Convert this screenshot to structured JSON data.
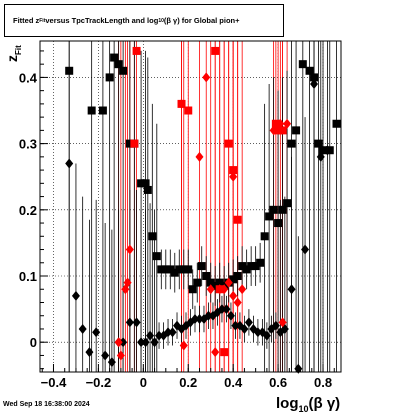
{
  "title": "Fitted z_Fit versus TpcTrackLength and log10(βγ) for Global pion+",
  "title_parts": {
    "pre": "Fitted  z",
    "sub1": "Fit",
    "mid": "  versus TpcTrackLength and log",
    "sub2": "10",
    "post": "(β γ) for Global pion+"
  },
  "footer": "Wed Sep 18 16:38:00 2024",
  "chart_data": {
    "type": "scatter",
    "xlabel": "log10(β γ)",
    "xlabel_parts": {
      "main": "log",
      "sub": "10",
      "tail": "(β γ)"
    },
    "ylabel": "z_Fit",
    "ylabel_parts": {
      "main": "z",
      "sub": "Fit"
    },
    "xlim": [
      -0.46,
      0.88
    ],
    "ylim": [
      -0.045,
      0.455
    ],
    "x_ticks": [
      -0.4,
      -0.2,
      0,
      0.2,
      0.4,
      0.6,
      0.8
    ],
    "x_tick_labels": [
      "−0.4",
      "−0.2",
      "0",
      "0.2",
      "0.4",
      "0.6",
      "0.8"
    ],
    "y_ticks": [
      0,
      0.1,
      0.2,
      0.3,
      0.4
    ],
    "y_tick_labels": [
      "0",
      "0.1",
      "0.2",
      "0.3",
      "0.4"
    ],
    "grid": true,
    "series": [
      {
        "marker": "square",
        "color": "#000000",
        "points": [
          [
            -0.33,
            0.41
          ],
          [
            -0.23,
            0.35
          ],
          [
            -0.18,
            0.35
          ],
          [
            -0.15,
            0.4
          ],
          [
            -0.13,
            0.43
          ],
          [
            -0.11,
            0.42
          ],
          [
            -0.09,
            0.41
          ],
          [
            -0.06,
            0.3
          ],
          [
            -0.04,
            0.3
          ],
          [
            -0.01,
            0.24
          ],
          [
            0.01,
            0.24
          ],
          [
            0.02,
            0.23
          ],
          [
            0.04,
            0.16
          ],
          [
            0.06,
            0.13
          ],
          [
            0.08,
            0.11
          ],
          [
            0.1,
            0.11
          ],
          [
            0.12,
            0.11
          ],
          [
            0.14,
            0.105
          ],
          [
            0.16,
            0.11
          ],
          [
            0.18,
            0.11
          ],
          [
            0.2,
            0.11
          ],
          [
            0.22,
            0.08
          ],
          [
            0.24,
            0.09
          ],
          [
            0.26,
            0.115
          ],
          [
            0.28,
            0.1
          ],
          [
            0.3,
            0.09
          ],
          [
            0.32,
            0.085
          ],
          [
            0.34,
            0.09
          ],
          [
            0.36,
            0.085
          ],
          [
            0.38,
            0.09
          ],
          [
            0.4,
            0.095
          ],
          [
            0.42,
            0.1
          ],
          [
            0.44,
            0.115
          ],
          [
            0.46,
            0.11
          ],
          [
            0.48,
            0.115
          ],
          [
            0.5,
            0.115
          ],
          [
            0.52,
            0.12
          ],
          [
            0.54,
            0.16
          ],
          [
            0.56,
            0.19
          ],
          [
            0.58,
            0.2
          ],
          [
            0.6,
            0.18
          ],
          [
            0.62,
            0.2
          ],
          [
            0.64,
            0.21
          ],
          [
            0.66,
            0.3
          ],
          [
            0.68,
            0.32
          ],
          [
            0.71,
            0.42
          ],
          [
            0.74,
            0.41
          ],
          [
            0.76,
            0.4
          ],
          [
            0.78,
            0.3
          ],
          [
            0.8,
            0.29
          ],
          [
            0.83,
            0.29
          ],
          [
            0.86,
            0.33
          ]
        ]
      },
      {
        "marker": "diamond",
        "color": "#000000",
        "points": [
          [
            -0.33,
            0.27
          ],
          [
            -0.3,
            0.07
          ],
          [
            -0.27,
            0.02
          ],
          [
            -0.24,
            -0.015
          ],
          [
            -0.21,
            0.015
          ],
          [
            -0.17,
            -0.02
          ],
          [
            -0.14,
            -0.03
          ],
          [
            -0.11,
            0.0
          ],
          [
            -0.09,
            0.0
          ],
          [
            -0.06,
            0.03
          ],
          [
            -0.03,
            0.03
          ],
          [
            -0.01,
            0.0
          ],
          [
            0.01,
            0.0
          ],
          [
            0.03,
            0.01
          ],
          [
            0.05,
            0.0
          ],
          [
            0.07,
            0.01
          ],
          [
            0.09,
            0.01
          ],
          [
            0.11,
            0.015
          ],
          [
            0.13,
            0.015
          ],
          [
            0.15,
            0.025
          ],
          [
            0.17,
            0.02
          ],
          [
            0.19,
            0.025
          ],
          [
            0.21,
            0.03
          ],
          [
            0.23,
            0.035
          ],
          [
            0.25,
            0.035
          ],
          [
            0.27,
            0.035
          ],
          [
            0.29,
            0.04
          ],
          [
            0.31,
            0.04
          ],
          [
            0.33,
            0.045
          ],
          [
            0.35,
            0.05
          ],
          [
            0.37,
            0.05
          ],
          [
            0.39,
            0.04
          ],
          [
            0.41,
            0.025
          ],
          [
            0.43,
            0.025
          ],
          [
            0.45,
            0.02
          ],
          [
            0.47,
            0.03
          ],
          [
            0.49,
            0.02
          ],
          [
            0.51,
            0.015
          ],
          [
            0.53,
            0.015
          ],
          [
            0.55,
            0.01
          ],
          [
            0.57,
            0.02
          ],
          [
            0.59,
            0.025
          ],
          [
            0.61,
            0.015
          ],
          [
            0.63,
            0.02
          ],
          [
            0.66,
            0.08
          ],
          [
            0.69,
            -0.04
          ],
          [
            0.72,
            0.14
          ],
          [
            0.76,
            0.39
          ],
          [
            0.79,
            0.28
          ],
          [
            0.82,
            0.29
          ]
        ]
      },
      {
        "marker": "diamond",
        "color": "#ff0000",
        "points": [
          [
            -0.11,
            0.0
          ],
          [
            -0.1,
            -0.02
          ],
          [
            -0.08,
            0.08
          ],
          [
            -0.07,
            0.09
          ],
          [
            -0.06,
            0.14
          ],
          [
            0.17,
            0.36
          ],
          [
            0.18,
            -0.005
          ],
          [
            0.25,
            0.28
          ],
          [
            0.28,
            0.4
          ],
          [
            0.3,
            0.08
          ],
          [
            0.32,
            -0.015
          ],
          [
            0.34,
            0.08
          ],
          [
            0.36,
            0.08
          ],
          [
            0.38,
            0.09
          ],
          [
            0.4,
            0.07
          ],
          [
            0.4,
            0.25
          ],
          [
            0.42,
            0.06
          ],
          [
            0.44,
            0.08
          ],
          [
            0.58,
            0.32
          ],
          [
            0.61,
            0.33
          ],
          [
            0.64,
            0.33
          ],
          [
            0.62,
            0.03
          ]
        ]
      },
      {
        "marker": "square",
        "color": "#ff0000",
        "points": [
          [
            -0.04,
            0.3
          ],
          [
            -0.03,
            0.44
          ],
          [
            0.17,
            0.36
          ],
          [
            0.2,
            0.35
          ],
          [
            0.32,
            0.44
          ],
          [
            0.34,
            0.08
          ],
          [
            0.36,
            -0.015
          ],
          [
            0.38,
            0.3
          ],
          [
            0.4,
            0.26
          ],
          [
            0.42,
            0.185
          ],
          [
            0.59,
            0.33
          ],
          [
            0.6,
            0.32
          ],
          [
            0.62,
            0.32
          ]
        ]
      }
    ]
  }
}
